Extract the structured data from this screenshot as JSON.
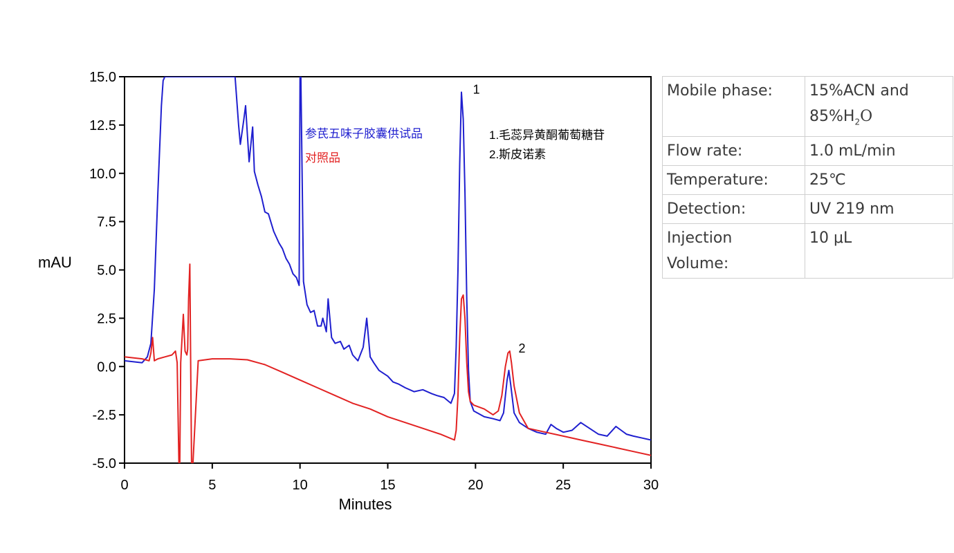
{
  "chart_data": {
    "type": "line",
    "xlabel": "Minutes",
    "ylabel": "mAU",
    "xlim": [
      0,
      30
    ],
    "ylim": [
      -5,
      15
    ],
    "xticks": [
      "0",
      "5",
      "10",
      "15",
      "20",
      "25",
      "30"
    ],
    "yticks": [
      "-5.0",
      "-2.5",
      "0.0",
      "2.5",
      "5.0",
      "7.5",
      "10.0",
      "12.5",
      "15.0"
    ],
    "grid": false,
    "series": [
      {
        "name": "参芪五味子胶囊供试品",
        "color": "#1f1fcf",
        "x": [
          0,
          1.0,
          1.3,
          1.5,
          1.7,
          1.9,
          2.1,
          2.2,
          2.3,
          6.3,
          6.5,
          6.6,
          6.8,
          6.9,
          7.0,
          7.1,
          7.3,
          7.4,
          7.6,
          7.8,
          8.0,
          8.2,
          8.5,
          8.8,
          9.0,
          9.2,
          9.4,
          9.6,
          9.8,
          9.95,
          10.0,
          10.05,
          10.2,
          10.4,
          10.6,
          10.8,
          11.0,
          11.2,
          11.3,
          11.5,
          11.6,
          11.8,
          12.0,
          12.3,
          12.5,
          12.8,
          13.0,
          13.3,
          13.6,
          13.8,
          14.0,
          14.2,
          14.5,
          15.0,
          15.3,
          15.6,
          16.0,
          16.5,
          17.0,
          17.5,
          17.8,
          18.2,
          18.6,
          18.8,
          18.9,
          19.0,
          19.1,
          19.2,
          19.3,
          19.4,
          19.5,
          19.6,
          19.7,
          19.9,
          20.5,
          21.0,
          21.4,
          21.6,
          21.8,
          21.9,
          22.0,
          22.2,
          22.5,
          23.0,
          23.5,
          24.0,
          24.3,
          24.6,
          25.0,
          25.5,
          26.0,
          26.5,
          27.0,
          27.5,
          28.0,
          28.3,
          28.6,
          29.0,
          29.5,
          30.0
        ],
        "y": [
          0.3,
          0.2,
          0.5,
          1.2,
          4.0,
          9.0,
          13.5,
          14.8,
          15.0,
          15.0,
          12.5,
          11.5,
          12.8,
          13.5,
          12.0,
          10.6,
          12.4,
          10.1,
          9.4,
          8.8,
          8.0,
          7.9,
          7.0,
          6.4,
          6.1,
          5.6,
          5.3,
          4.8,
          4.6,
          4.2,
          15.0,
          15.0,
          4.4,
          3.2,
          2.8,
          2.9,
          2.1,
          2.1,
          2.5,
          1.8,
          3.5,
          1.5,
          1.2,
          1.3,
          0.9,
          1.1,
          0.6,
          0.3,
          1.0,
          2.5,
          0.5,
          0.2,
          -0.2,
          -0.5,
          -0.8,
          -0.9,
          -1.1,
          -1.3,
          -1.2,
          -1.4,
          -1.5,
          -1.6,
          -1.9,
          -1.4,
          1.0,
          5.0,
          10.5,
          14.2,
          12.8,
          9.0,
          3.5,
          -0.2,
          -1.8,
          -2.3,
          -2.6,
          -2.7,
          -2.8,
          -2.4,
          -0.7,
          -0.2,
          -0.9,
          -2.4,
          -2.9,
          -3.2,
          -3.4,
          -3.5,
          -3.0,
          -3.2,
          -3.4,
          -3.3,
          -2.9,
          -3.2,
          -3.5,
          -3.6,
          -3.1,
          -3.3,
          -3.5,
          -3.6,
          -3.7,
          -3.8
        ]
      },
      {
        "name": "对照品",
        "color": "#e22222",
        "x": [
          0,
          1.0,
          1.4,
          1.5,
          1.6,
          1.7,
          1.9,
          2.3,
          2.7,
          2.9,
          3.0,
          3.1,
          3.15,
          3.2,
          3.35,
          3.45,
          3.55,
          3.6,
          3.65,
          3.72,
          3.78,
          3.82,
          3.9,
          4.2,
          5.0,
          6.0,
          7.0,
          8.0,
          9.0,
          10.0,
          11.0,
          12.0,
          13.0,
          14.0,
          15.0,
          16.0,
          17.0,
          18.0,
          18.8,
          18.9,
          19.0,
          19.1,
          19.2,
          19.3,
          19.4,
          19.5,
          19.6,
          19.7,
          19.9,
          20.5,
          21.0,
          21.3,
          21.5,
          21.7,
          21.85,
          21.95,
          22.05,
          22.2,
          22.5,
          23.0,
          24.0,
          25.0,
          26.0,
          27.0,
          28.0,
          29.0,
          30.0
        ],
        "y": [
          0.5,
          0.4,
          0.3,
          0.7,
          1.5,
          0.3,
          0.4,
          0.5,
          0.6,
          0.8,
          0.2,
          -5.0,
          -5.0,
          0.2,
          2.7,
          0.8,
          0.6,
          0.9,
          3.5,
          5.3,
          -1.0,
          -5.0,
          -5.0,
          0.3,
          0.4,
          0.4,
          0.35,
          0.1,
          -0.3,
          -0.7,
          -1.1,
          -1.5,
          -1.9,
          -2.2,
          -2.6,
          -2.9,
          -3.2,
          -3.5,
          -3.8,
          -3.3,
          -1.5,
          1.5,
          3.5,
          3.7,
          2.5,
          0.2,
          -1.3,
          -1.8,
          -2.0,
          -2.2,
          -2.5,
          -2.3,
          -1.5,
          0.0,
          0.7,
          0.8,
          0.2,
          -1.0,
          -2.4,
          -3.2,
          -3.4,
          -3.6,
          -3.8,
          -4.0,
          -4.2,
          -4.4,
          -4.6
        ]
      }
    ],
    "annotations": [
      {
        "text": "1",
        "x": 19.3,
        "y": 14.2
      },
      {
        "text": "2",
        "x": 21.9,
        "y": 0.8
      }
    ]
  },
  "legend": {
    "sample": "参芪五味子胶囊供试品",
    "reference": "对照品"
  },
  "peak_list": {
    "item1": "1.毛蕊异黄酮葡萄糖苷",
    "item2": "2.斯皮诺素"
  },
  "conditions": {
    "mobile_phase_label": "Mobile phase:",
    "mobile_phase_value_1": "15%ACN and",
    "mobile_phase_value_2a": "85%H",
    "mobile_phase_value_2sub": "2",
    "mobile_phase_value_2b": "O",
    "flow_rate_label": "Flow rate:",
    "flow_rate_value": "1.0 mL/min",
    "temperature_label": "Temperature:",
    "temperature_value": "25℃",
    "detection_label": "Detection:",
    "detection_value": "UV 219 nm",
    "injection_label_1": "Injection",
    "injection_label_2": "Volume:",
    "injection_value": "10 μL"
  }
}
